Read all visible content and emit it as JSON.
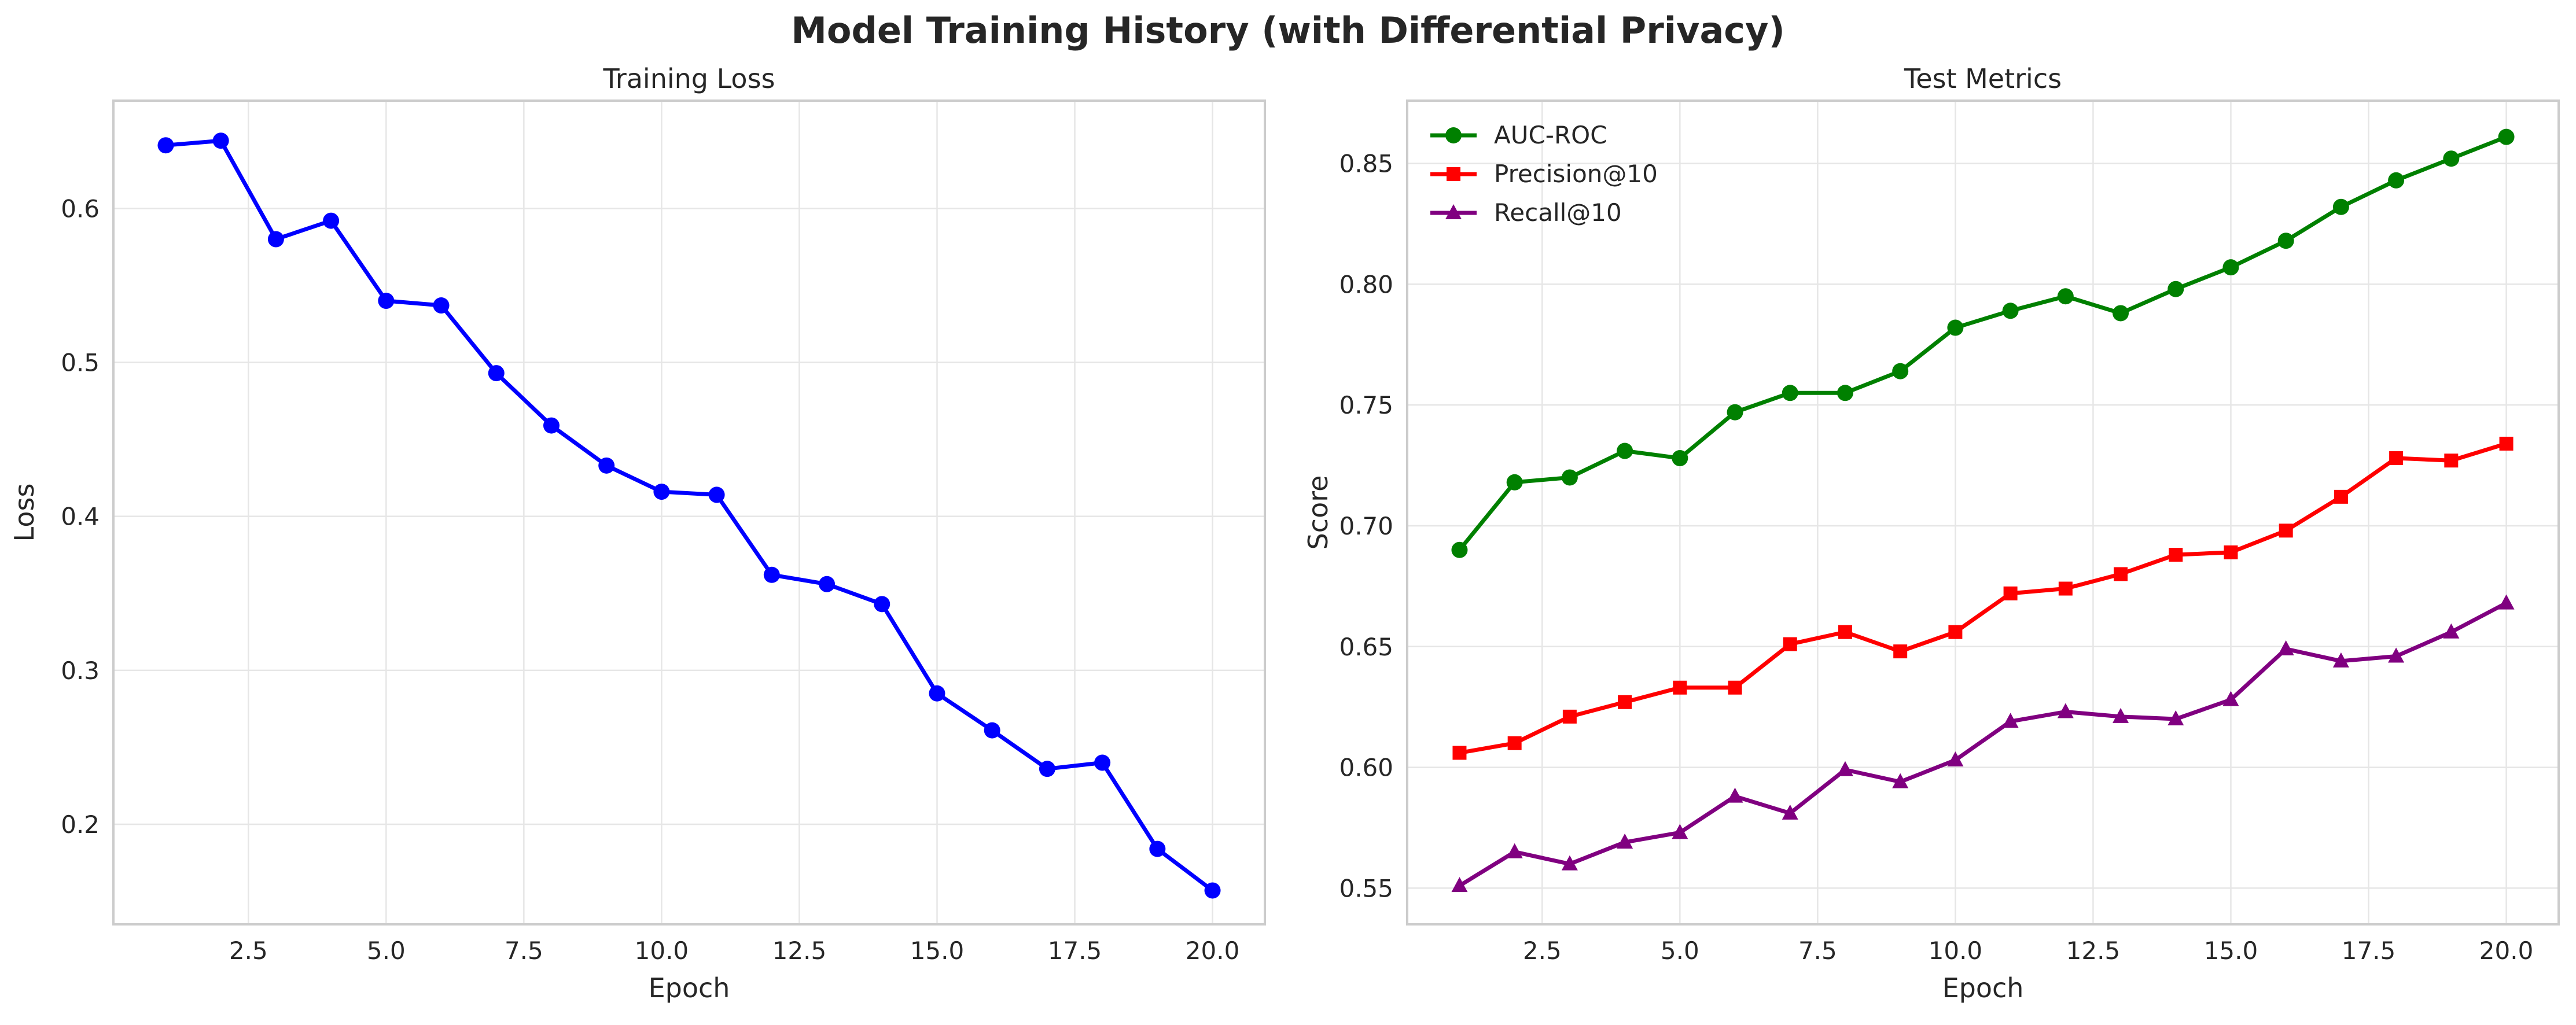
{
  "figure": {
    "title": "Model Training History (with Differential Privacy)"
  },
  "chart_data": [
    {
      "type": "line",
      "title": "Training Loss",
      "xlabel": "Epoch",
      "ylabel": "Loss",
      "xlim": [
        0.05,
        20.95
      ],
      "ylim": [
        0.135,
        0.67
      ],
      "xticks": [
        2.5,
        5.0,
        7.5,
        10.0,
        12.5,
        15.0,
        17.5,
        20.0
      ],
      "xtick_labels": [
        "2.5",
        "5.0",
        "7.5",
        "10.0",
        "12.5",
        "15.0",
        "17.5",
        "20.0"
      ],
      "yticks": [
        0.2,
        0.3,
        0.4,
        0.5,
        0.6
      ],
      "ytick_labels": [
        "0.2",
        "0.3",
        "0.4",
        "0.5",
        "0.6"
      ],
      "grid": true,
      "x": [
        1,
        2,
        3,
        4,
        5,
        6,
        7,
        8,
        9,
        10,
        11,
        12,
        13,
        14,
        15,
        16,
        17,
        18,
        19,
        20
      ],
      "series": [
        {
          "name": "",
          "color": "#0000ff",
          "marker": "circle",
          "values": [
            0.641,
            0.644,
            0.58,
            0.592,
            0.54,
            0.537,
            0.493,
            0.459,
            0.433,
            0.416,
            0.414,
            0.362,
            0.356,
            0.343,
            0.285,
            0.261,
            0.236,
            0.24,
            0.184,
            0.157
          ]
        }
      ]
    },
    {
      "type": "line",
      "title": "Test Metrics",
      "xlabel": "Epoch",
      "ylabel": "Score",
      "xlim": [
        0.05,
        20.95
      ],
      "ylim": [
        0.535,
        0.876
      ],
      "xticks": [
        2.5,
        5.0,
        7.5,
        10.0,
        12.5,
        15.0,
        17.5,
        20.0
      ],
      "xtick_labels": [
        "2.5",
        "5.0",
        "7.5",
        "10.0",
        "12.5",
        "15.0",
        "17.5",
        "20.0"
      ],
      "yticks": [
        0.55,
        0.6,
        0.65,
        0.7,
        0.75,
        0.8,
        0.85
      ],
      "ytick_labels": [
        "0.55",
        "0.60",
        "0.65",
        "0.70",
        "0.75",
        "0.80",
        "0.85"
      ],
      "grid": true,
      "legend": "top-left",
      "x": [
        1,
        2,
        3,
        4,
        5,
        6,
        7,
        8,
        9,
        10,
        11,
        12,
        13,
        14,
        15,
        16,
        17,
        18,
        19,
        20
      ],
      "series": [
        {
          "name": "AUC-ROC",
          "color": "#008000",
          "marker": "circle",
          "values": [
            0.69,
            0.718,
            0.72,
            0.731,
            0.728,
            0.747,
            0.755,
            0.755,
            0.764,
            0.782,
            0.789,
            0.795,
            0.788,
            0.798,
            0.807,
            0.818,
            0.832,
            0.843,
            0.852,
            0.861
          ]
        },
        {
          "name": "Precision@10",
          "color": "#ff0000",
          "marker": "square",
          "values": [
            0.606,
            0.61,
            0.621,
            0.627,
            0.633,
            0.633,
            0.651,
            0.656,
            0.648,
            0.656,
            0.672,
            0.674,
            0.68,
            0.688,
            0.689,
            0.698,
            0.712,
            0.728,
            0.727,
            0.734
          ]
        },
        {
          "name": "Recall@10",
          "color": "#800080",
          "marker": "triangle",
          "values": [
            0.551,
            0.565,
            0.56,
            0.569,
            0.573,
            0.588,
            0.581,
            0.599,
            0.594,
            0.603,
            0.619,
            0.623,
            0.621,
            0.62,
            0.628,
            0.649,
            0.644,
            0.646,
            0.656,
            0.668
          ]
        }
      ]
    }
  ]
}
